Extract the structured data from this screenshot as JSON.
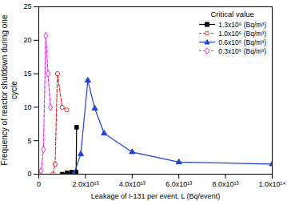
{
  "chart_data": {
    "type": "line",
    "xlabel": "Leakage of I-131 per event, L (Bq/event)",
    "ylabel": "Frequency of reactor shutdown during one cycle",
    "legend_title": "Critical value",
    "legend": "top-right",
    "grid": false,
    "xlim": [
      0,
      100000000000000.0
    ],
    "xticks": [
      0,
      {
        "value": 20000000000000.0,
        "label": "2.0x10¹³"
      },
      {
        "value": 40000000000000.0,
        "label": "4.0x10¹³"
      },
      {
        "value": 60000000000000.0,
        "label": "6.0x10¹³"
      },
      {
        "value": 80000000000000.0,
        "label": "8.0x10¹³"
      },
      {
        "value": 100000000000000.0,
        "label": "1.0x10¹⁴"
      }
    ],
    "ylim": [
      0,
      25
    ],
    "yticks": [
      0,
      5,
      10,
      15,
      20,
      25
    ],
    "series": [
      {
        "name": "1.3x10⁶ (Bq/m³)",
        "color": "#000000",
        "line_style": "solid",
        "marker": "square",
        "x": [
          0,
          10000000000000.0,
          12000000000000.0,
          14000000000000.0,
          16000000000000.0,
          16200000000000.0
        ],
        "values": [
          0,
          0,
          0.2,
          0.3,
          0.3,
          7
        ]
      },
      {
        "name": "1.0x10⁶ (Bq/m³)",
        "color": "#ff2020",
        "line_style": "dashed",
        "marker": "open-circle",
        "x": [
          0,
          6000000000000.0,
          7000000000000.0,
          8000000000000.0,
          10000000000000.0,
          12000000000000.0
        ],
        "values": [
          0,
          0,
          1.5,
          15,
          10,
          9.6
        ]
      },
      {
        "name": "0.6x10⁶ (Bq/m³)",
        "color": "#2040e0",
        "line_style": "solid",
        "marker": "triangle",
        "x": [
          0,
          15000000000000.0,
          18000000000000.0,
          21000000000000.0,
          24000000000000.0,
          28000000000000.0,
          40000000000000.0,
          60000000000000.0,
          100000000000000.0
        ],
        "values": [
          0,
          0,
          3,
          14,
          9.8,
          6.1,
          3.3,
          1.8,
          1.5
        ]
      },
      {
        "name": "0.3x10⁶ (Bq/m³)",
        "color": "#e030e0",
        "line_style": "dashed",
        "marker": "open-diamond",
        "x": [
          0,
          1000000000000.0,
          2000000000000.0,
          3000000000000.0,
          4000000000000.0,
          5000000000000.0
        ],
        "values": [
          0,
          0.5,
          3.7,
          20.7,
          15,
          10
        ]
      }
    ]
  }
}
